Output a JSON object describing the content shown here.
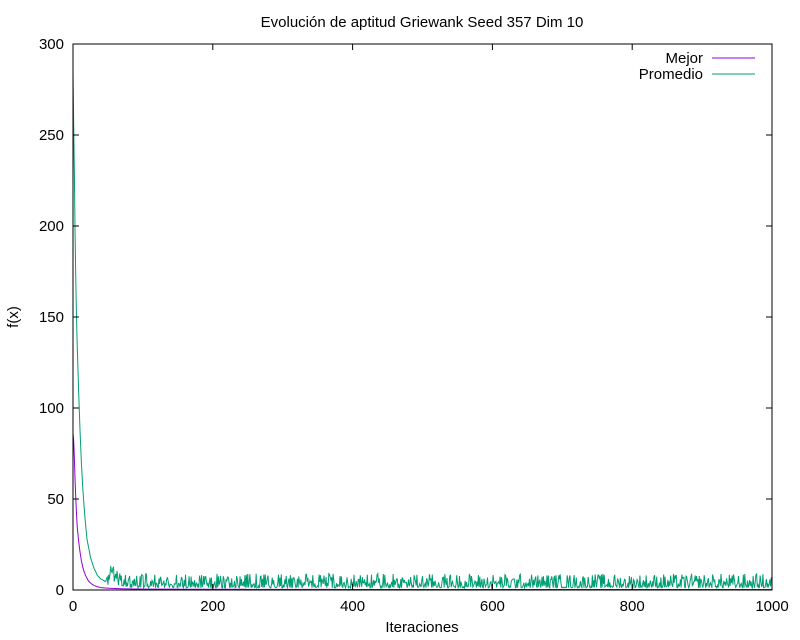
{
  "chart_data": {
    "type": "line",
    "title": "Evolución de aptitud Griewank Seed 357 Dim 10",
    "xlabel": "Iteraciones",
    "ylabel": "f(x)",
    "xlim": [
      0,
      1000
    ],
    "ylim": [
      0,
      300
    ],
    "x_ticks": [
      0,
      200,
      400,
      600,
      800,
      1000
    ],
    "y_ticks": [
      0,
      50,
      100,
      150,
      200,
      250,
      300
    ],
    "grid": false,
    "legend_position": "top-right",
    "series": [
      {
        "name": "Mejor",
        "color": "#9400d3",
        "x": [
          0,
          1,
          2,
          3,
          4,
          5,
          6,
          8,
          10,
          12,
          15,
          18,
          22,
          26,
          30,
          35,
          40,
          50,
          60,
          80,
          100,
          200,
          400,
          600,
          800,
          1000
        ],
        "values": [
          86,
          82,
          72,
          60,
          50,
          42,
          35,
          27,
          21,
          16,
          11,
          8,
          5,
          3.5,
          2.5,
          1.8,
          1.3,
          1.0,
          0.8,
          0.6,
          0.5,
          0.4,
          0.3,
          0.3,
          0.3,
          0.3
        ]
      },
      {
        "name": "Promedio",
        "color": "#009e73",
        "x": [
          0,
          1,
          2,
          3,
          4,
          5,
          6,
          8,
          10,
          12,
          14,
          16,
          18,
          20,
          25,
          30,
          35,
          40,
          50,
          55,
          60,
          70,
          80,
          100,
          150,
          200,
          250,
          300,
          350,
          400,
          450,
          500,
          550,
          600,
          650,
          700,
          750,
          800,
          850,
          900,
          950,
          1000
        ],
        "values": [
          284,
          255,
          228,
          195,
          170,
          150,
          135,
          110,
          88,
          70,
          56,
          45,
          36,
          28,
          18,
          12,
          8,
          6,
          4,
          12,
          5,
          4,
          3,
          3,
          3,
          3,
          3,
          3,
          3,
          3,
          3,
          3,
          3,
          3,
          3,
          3,
          3,
          3,
          3,
          3,
          3,
          3
        ],
        "noise_amplitude": 3
      }
    ]
  }
}
